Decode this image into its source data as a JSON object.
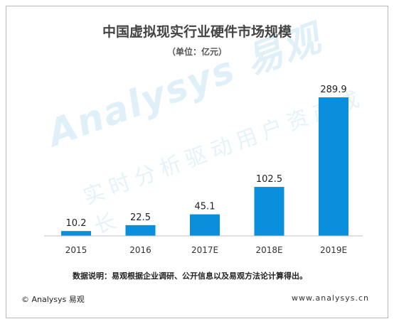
{
  "chart_data": {
    "type": "bar",
    "title": "中国虚拟现实行业硬件市场规模",
    "subtitle": "（单位：亿元）",
    "categories": [
      "2015",
      "2016",
      "2017E",
      "2018E",
      "2019E"
    ],
    "values": [
      10.2,
      22.5,
      45.1,
      102.5,
      289.9
    ],
    "value_labels": [
      "10.2",
      "22.5",
      "45.1",
      "102.5",
      "289.9"
    ],
    "xlabel": "",
    "ylabel": "",
    "ylim": [
      0,
      289.9
    ],
    "grid": false,
    "bar_color": "#0a8fdc"
  },
  "watermark": {
    "brand": "Analysys 易观",
    "slogan": "实时分析驱动用户资产成长"
  },
  "footer": {
    "note": "数据说明：易观根据企业调研、公开信息以及易观方法论计算得出。",
    "copyright": "© Analysys 易观",
    "website": "www.analysys.cn"
  }
}
